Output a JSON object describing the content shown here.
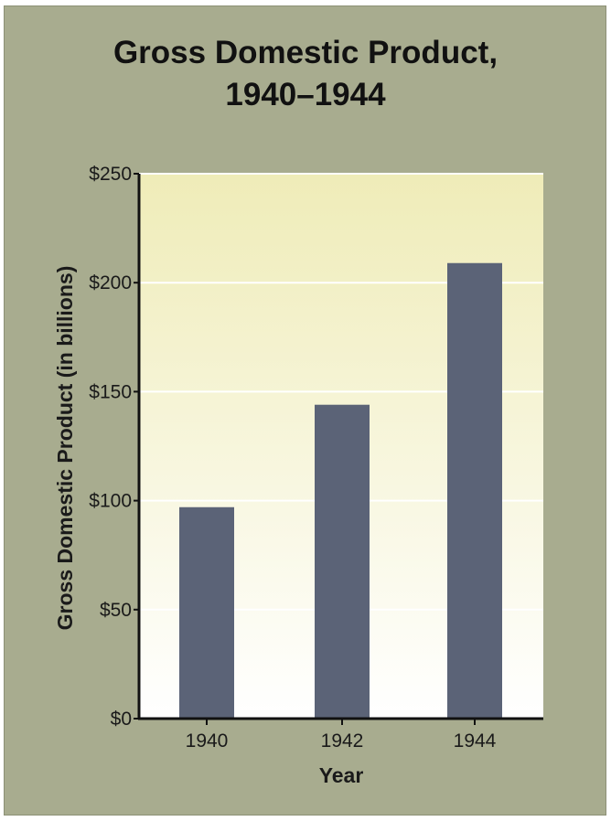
{
  "chart_data": {
    "type": "bar",
    "title_lines": [
      "Gross Domestic Product,",
      "1940–1944"
    ],
    "xlabel": "Year",
    "ylabel": "Gross Domestic Product (in billions)",
    "categories": [
      "1940",
      "1942",
      "1944"
    ],
    "values": [
      97,
      144,
      209
    ],
    "ylim": [
      0,
      250
    ],
    "yticks": [
      0,
      50,
      100,
      150,
      200,
      250
    ],
    "ytick_labels": [
      "$0",
      "$50",
      "$100",
      "$150",
      "$200",
      "$250"
    ],
    "grid": true,
    "colors": {
      "bar": "#5b6377",
      "background": "#a8ac8f",
      "plot_top": "#efecb8",
      "plot_bottom": "#ffffff",
      "axis": "#111111",
      "gridline": "#ffffff"
    }
  }
}
